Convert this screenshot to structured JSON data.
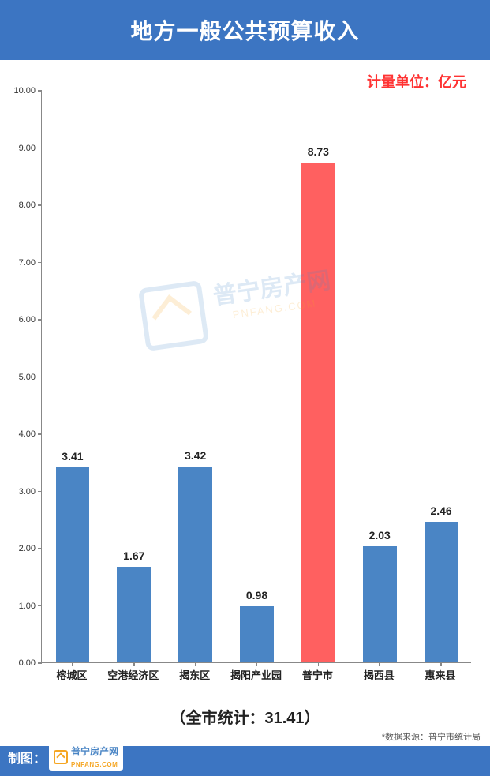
{
  "title": "地方一般公共预算收入",
  "unit_label": "计量单位：亿元",
  "unit_label_color": "#ff3333",
  "chart": {
    "type": "bar",
    "categories": [
      "榕城区",
      "空港经济区",
      "揭东区",
      "揭阳产业园",
      "普宁市",
      "揭西县",
      "惠来县"
    ],
    "values": [
      3.41,
      1.67,
      3.42,
      0.98,
      8.73,
      2.03,
      2.46
    ],
    "bar_colors": [
      "#4a85c5",
      "#4a85c5",
      "#4a85c5",
      "#4a85c5",
      "#ff6060",
      "#4a85c5",
      "#4a85c5"
    ],
    "ylim": [
      0,
      10
    ],
    "ytick_step": 1,
    "ytick_decimals": 2,
    "bar_width_ratio": 0.55,
    "axis_color": "#888888",
    "background_color": "#ffffff",
    "value_label_fontsize": 14,
    "xtick_fontsize": 13,
    "ytick_fontsize": 11
  },
  "subtitle": "（全市统计：31.41）",
  "footer": {
    "label": "制图：",
    "brand_text": "普宁房产网",
    "brand_sub": "PNFANG.COM",
    "brand_color": "#3c75c2",
    "accent_color": "#f5a623"
  },
  "data_source": "*数据来源：普宁市统计局",
  "watermark": {
    "text": "普宁房产网",
    "sub": "PNFANG.COM"
  }
}
